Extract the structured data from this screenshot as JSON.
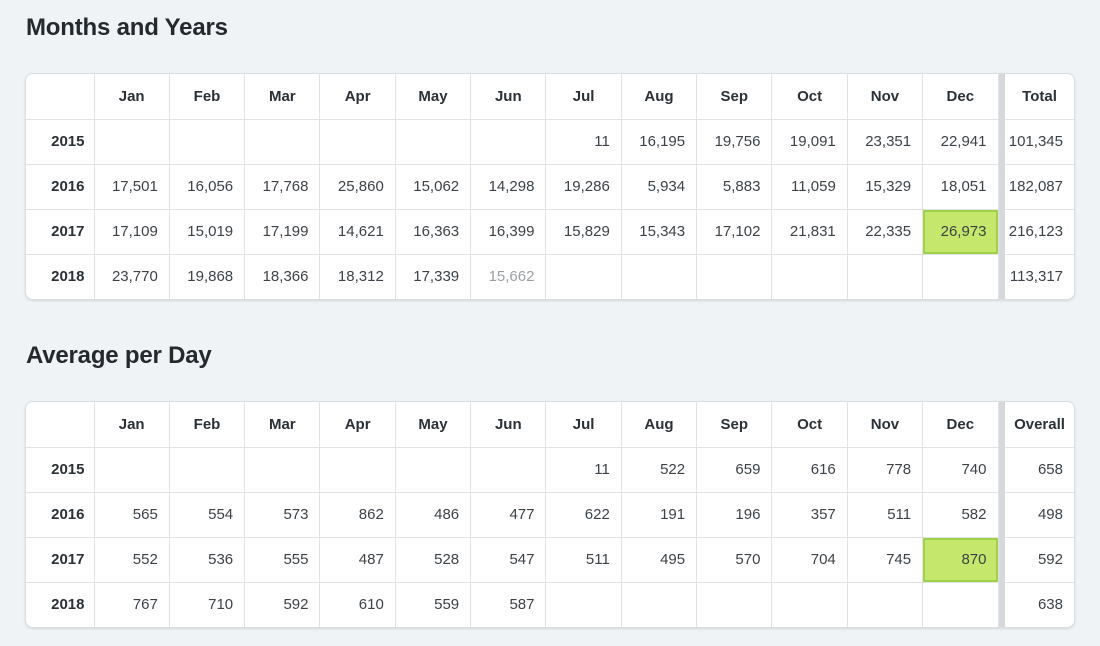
{
  "page": {
    "background": "#eff3f6"
  },
  "colors": {
    "highlight_bg": "#c5e86c",
    "highlight_border": "#a2d147",
    "muted_text": "#9ba0a5",
    "header_text": "#2b3136",
    "cell_text": "#3c4247",
    "title_text": "#24292e",
    "border": "#e1e3e6",
    "divider": "#d6d9dc",
    "card_bg": "#ffffff",
    "page_bg": "#eff3f6"
  },
  "sections": [
    {
      "title": "Months and Years",
      "columns": [
        "Jan",
        "Feb",
        "Mar",
        "Apr",
        "May",
        "Jun",
        "Jul",
        "Aug",
        "Sep",
        "Oct",
        "Nov",
        "Dec"
      ],
      "summary_column": "Total",
      "rows": [
        {
          "label": "2015",
          "values": [
            "",
            "",
            "",
            "",
            "",
            "",
            "11",
            "16,195",
            "19,756",
            "19,091",
            "23,351",
            "22,941"
          ],
          "summary": "101,345"
        },
        {
          "label": "2016",
          "values": [
            "17,501",
            "16,056",
            "17,768",
            "25,860",
            "15,062",
            "14,298",
            "19,286",
            "5,934",
            "5,883",
            "11,059",
            "15,329",
            "18,051"
          ],
          "summary": "182,087"
        },
        {
          "label": "2017",
          "values": [
            "17,109",
            "15,019",
            "17,199",
            "14,621",
            "16,363",
            "16,399",
            "15,829",
            "15,343",
            "17,102",
            "21,831",
            "22,335",
            "26,973"
          ],
          "summary": "216,123"
        },
        {
          "label": "2018",
          "values": [
            "23,770",
            "19,868",
            "18,366",
            "18,312",
            "17,339",
            "15,662",
            "",
            "",
            "",
            "",
            "",
            ""
          ],
          "summary": "113,317"
        }
      ],
      "highlight_cell": {
        "row": 2,
        "col": 11
      },
      "muted_cell": {
        "row": 3,
        "col": 5
      }
    },
    {
      "title": "Average per Day",
      "columns": [
        "Jan",
        "Feb",
        "Mar",
        "Apr",
        "May",
        "Jun",
        "Jul",
        "Aug",
        "Sep",
        "Oct",
        "Nov",
        "Dec"
      ],
      "summary_column": "Overall",
      "rows": [
        {
          "label": "2015",
          "values": [
            "",
            "",
            "",
            "",
            "",
            "",
            "11",
            "522",
            "659",
            "616",
            "778",
            "740"
          ],
          "summary": "658"
        },
        {
          "label": "2016",
          "values": [
            "565",
            "554",
            "573",
            "862",
            "486",
            "477",
            "622",
            "191",
            "196",
            "357",
            "511",
            "582"
          ],
          "summary": "498"
        },
        {
          "label": "2017",
          "values": [
            "552",
            "536",
            "555",
            "487",
            "528",
            "547",
            "511",
            "495",
            "570",
            "704",
            "745",
            "870"
          ],
          "summary": "592"
        },
        {
          "label": "2018",
          "values": [
            "767",
            "710",
            "592",
            "610",
            "559",
            "587",
            "",
            "",
            "",
            "",
            "",
            ""
          ],
          "summary": "638"
        }
      ],
      "highlight_cell": {
        "row": 2,
        "col": 11
      },
      "muted_cell": null
    }
  ]
}
